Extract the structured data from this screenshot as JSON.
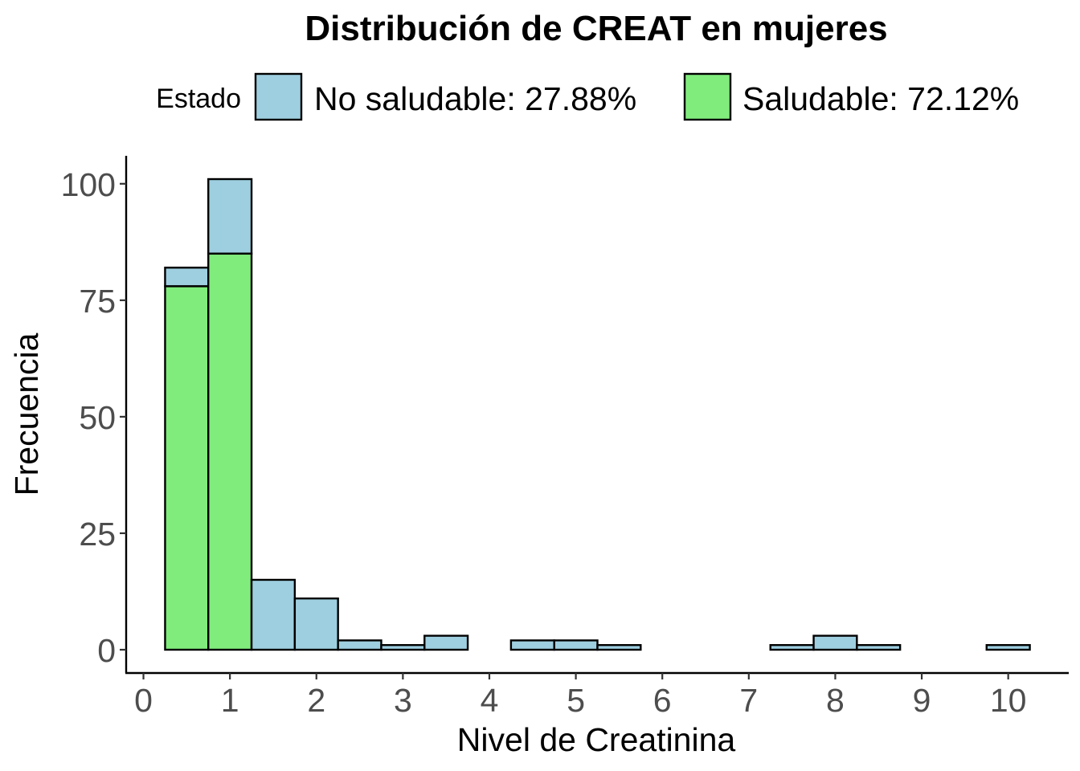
{
  "chart_data": {
    "type": "bar",
    "stacked": true,
    "title": "Distribución de CREAT en mujeres",
    "xlabel": "Nivel de Creatinina",
    "ylabel": "Frecuencia",
    "legend": {
      "title": "Estado",
      "placement": "top",
      "entries": [
        {
          "label": "No saludable: 27.88%",
          "color": "#9ecfe0"
        },
        {
          "label": "Saludable: 72.12%",
          "color": "#80ec7c"
        }
      ]
    },
    "bin_width": 0.5,
    "xlim": [
      -0.2,
      10.7
    ],
    "ylim": [
      -5,
      106
    ],
    "x_ticks": [
      0,
      1,
      2,
      3,
      4,
      5,
      6,
      7,
      8,
      9,
      10
    ],
    "y_ticks": [
      0,
      25,
      50,
      75,
      100
    ],
    "grid": false,
    "bins": [
      {
        "start": 0.25,
        "end": 0.75,
        "saludable": 78,
        "no_saludable": 4
      },
      {
        "start": 0.75,
        "end": 1.25,
        "saludable": 85,
        "no_saludable": 16
      },
      {
        "start": 1.25,
        "end": 1.75,
        "saludable": 0,
        "no_saludable": 15
      },
      {
        "start": 1.75,
        "end": 2.25,
        "saludable": 0,
        "no_saludable": 11
      },
      {
        "start": 2.25,
        "end": 2.75,
        "saludable": 0,
        "no_saludable": 2
      },
      {
        "start": 2.75,
        "end": 3.25,
        "saludable": 0,
        "no_saludable": 1
      },
      {
        "start": 3.25,
        "end": 3.75,
        "saludable": 0,
        "no_saludable": 3
      },
      {
        "start": 3.75,
        "end": 4.25,
        "saludable": 0,
        "no_saludable": 0
      },
      {
        "start": 4.25,
        "end": 4.75,
        "saludable": 0,
        "no_saludable": 2
      },
      {
        "start": 4.75,
        "end": 5.25,
        "saludable": 0,
        "no_saludable": 2
      },
      {
        "start": 5.25,
        "end": 5.75,
        "saludable": 0,
        "no_saludable": 1
      },
      {
        "start": 5.75,
        "end": 6.25,
        "saludable": 0,
        "no_saludable": 0
      },
      {
        "start": 6.25,
        "end": 6.75,
        "saludable": 0,
        "no_saludable": 0
      },
      {
        "start": 6.75,
        "end": 7.25,
        "saludable": 0,
        "no_saludable": 0
      },
      {
        "start": 7.25,
        "end": 7.75,
        "saludable": 0,
        "no_saludable": 1
      },
      {
        "start": 7.75,
        "end": 8.25,
        "saludable": 0,
        "no_saludable": 3
      },
      {
        "start": 8.25,
        "end": 8.75,
        "saludable": 0,
        "no_saludable": 1
      },
      {
        "start": 8.75,
        "end": 9.25,
        "saludable": 0,
        "no_saludable": 0
      },
      {
        "start": 9.25,
        "end": 9.75,
        "saludable": 0,
        "no_saludable": 0
      },
      {
        "start": 9.75,
        "end": 10.25,
        "saludable": 0,
        "no_saludable": 1
      }
    ]
  }
}
